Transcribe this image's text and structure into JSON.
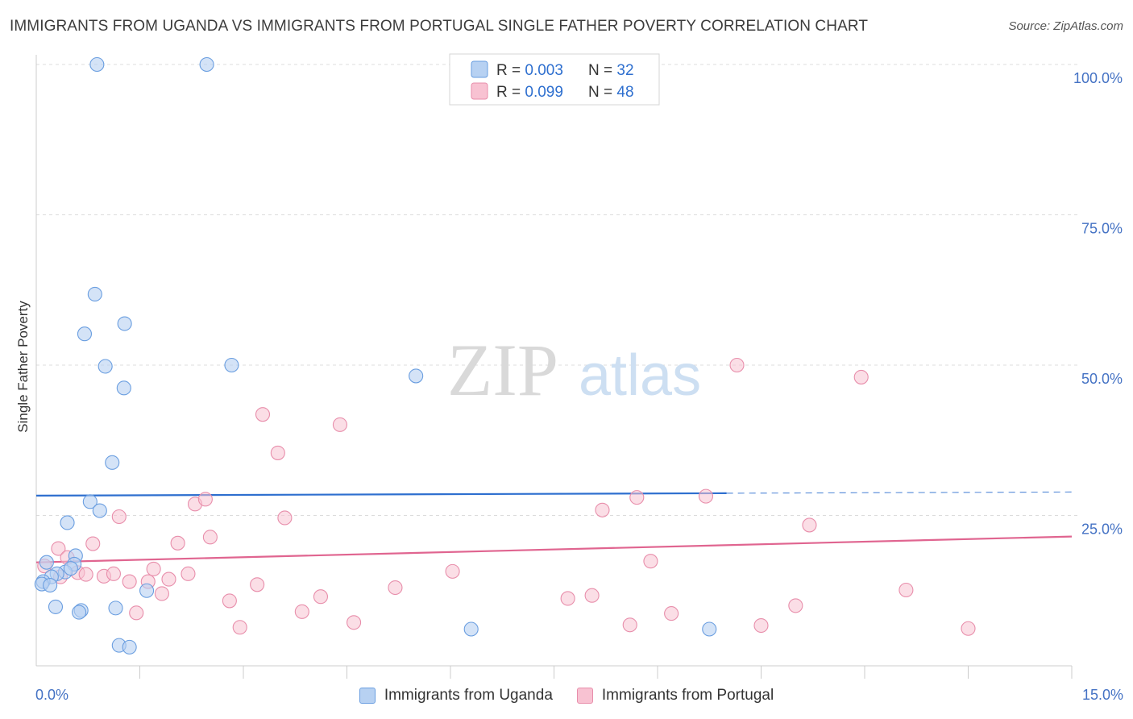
{
  "title": "IMMIGRANTS FROM UGANDA VS IMMIGRANTS FROM PORTUGAL SINGLE FATHER POVERTY CORRELATION CHART",
  "source": "Source: ZipAtlas.com",
  "watermark": {
    "zip": "ZIP",
    "atlas": "atlas"
  },
  "colors": {
    "blue_fill": "#b7d1f2",
    "blue_stroke": "#6a9ee0",
    "blue_line": "#2e6fcf",
    "pink_fill": "#f8c2d2",
    "pink_stroke": "#e88eab",
    "pink_line": "#e06590",
    "axis_text": "#4472c4",
    "grid": "#dcdcdc"
  },
  "legend": {
    "rows": [
      {
        "r_label": "R = ",
        "r_value": "0.003",
        "n_label": "N = ",
        "n_value": "32"
      },
      {
        "r_label": "R = ",
        "r_value": "0.099",
        "n_label": "N = ",
        "n_value": "48"
      }
    ]
  },
  "chart_data": {
    "type": "scatter",
    "title": "IMMIGRANTS FROM UGANDA VS IMMIGRANTS FROM PORTUGAL SINGLE FATHER POVERTY CORRELATION CHART",
    "xlabel": "",
    "ylabel": "Single Father Poverty",
    "xlim": [
      0,
      15
    ],
    "ylim": [
      0,
      100
    ],
    "x_tick_labels": [
      "0.0%",
      "15.0%"
    ],
    "y_ticks": [
      25,
      50,
      75,
      100
    ],
    "y_tick_labels": [
      "25.0%",
      "50.0%",
      "75.0%",
      "100.0%"
    ],
    "series": [
      {
        "name": "Immigrants from Uganda",
        "color": "blue",
        "trend": {
          "x": [
            0,
            10
          ],
          "y": [
            28.3,
            28.7
          ],
          "dashed_to_x": 15,
          "dashed_end_y": 28.9
        },
        "points": [
          [
            0.88,
            100
          ],
          [
            2.47,
            100
          ],
          [
            0.85,
            61.8
          ],
          [
            1.28,
            56.9
          ],
          [
            0.7,
            55.2
          ],
          [
            1.0,
            49.8
          ],
          [
            2.83,
            50.0
          ],
          [
            1.27,
            46.2
          ],
          [
            5.5,
            48.2
          ],
          [
            1.1,
            33.8
          ],
          [
            0.78,
            27.3
          ],
          [
            0.92,
            25.8
          ],
          [
            0.45,
            23.8
          ],
          [
            0.57,
            18.3
          ],
          [
            0.15,
            17.2
          ],
          [
            0.55,
            16.9
          ],
          [
            0.42,
            15.6
          ],
          [
            0.3,
            15.3
          ],
          [
            0.22,
            14.8
          ],
          [
            0.1,
            14.0
          ],
          [
            0.08,
            13.6
          ],
          [
            0.2,
            13.4
          ],
          [
            1.6,
            12.5
          ],
          [
            0.28,
            9.8
          ],
          [
            0.65,
            9.2
          ],
          [
            0.62,
            8.9
          ],
          [
            1.15,
            9.6
          ],
          [
            6.3,
            6.1
          ],
          [
            9.75,
            6.1
          ],
          [
            1.2,
            3.4
          ],
          [
            1.35,
            3.1
          ],
          [
            0.5,
            16.2
          ]
        ]
      },
      {
        "name": "Immigrants from Portugal",
        "color": "pink",
        "trend": {
          "x": [
            0,
            15
          ],
          "y": [
            17.2,
            21.5
          ]
        },
        "points": [
          [
            0.12,
            16.6
          ],
          [
            0.32,
            19.5
          ],
          [
            0.45,
            18.0
          ],
          [
            0.35,
            14.8
          ],
          [
            0.6,
            15.5
          ],
          [
            0.72,
            15.2
          ],
          [
            0.82,
            20.3
          ],
          [
            0.98,
            14.9
          ],
          [
            1.12,
            15.3
          ],
          [
            1.2,
            24.8
          ],
          [
            1.35,
            14.0
          ],
          [
            1.45,
            8.8
          ],
          [
            1.62,
            14.0
          ],
          [
            1.7,
            16.1
          ],
          [
            1.82,
            12.0
          ],
          [
            1.92,
            14.4
          ],
          [
            2.05,
            20.4
          ],
          [
            2.2,
            15.3
          ],
          [
            2.3,
            26.9
          ],
          [
            2.45,
            27.7
          ],
          [
            2.52,
            21.4
          ],
          [
            2.8,
            10.8
          ],
          [
            2.95,
            6.4
          ],
          [
            3.2,
            13.5
          ],
          [
            3.28,
            41.8
          ],
          [
            3.5,
            35.4
          ],
          [
            3.6,
            24.6
          ],
          [
            3.85,
            9.0
          ],
          [
            4.12,
            11.5
          ],
          [
            4.4,
            40.1
          ],
          [
            4.6,
            7.2
          ],
          [
            5.2,
            13.0
          ],
          [
            6.03,
            15.7
          ],
          [
            7.7,
            11.2
          ],
          [
            8.05,
            11.7
          ],
          [
            8.2,
            25.9
          ],
          [
            8.6,
            6.8
          ],
          [
            8.7,
            28.0
          ],
          [
            8.9,
            17.4
          ],
          [
            9.2,
            8.7
          ],
          [
            9.7,
            28.2
          ],
          [
            10.15,
            50.0
          ],
          [
            10.5,
            6.7
          ],
          [
            11.0,
            10.0
          ],
          [
            11.2,
            23.4
          ],
          [
            11.95,
            48.0
          ],
          [
            12.6,
            12.6
          ],
          [
            13.5,
            6.2
          ]
        ]
      }
    ]
  }
}
